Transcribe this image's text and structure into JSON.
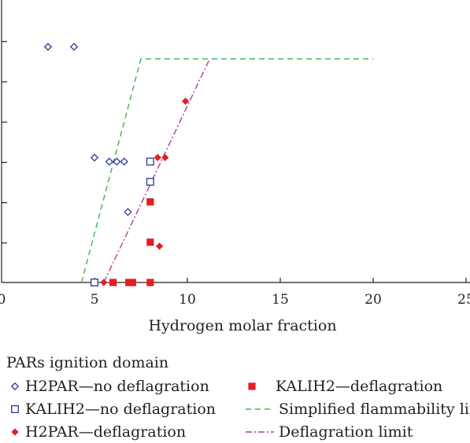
{
  "chart_data": {
    "type": "scatter",
    "xlabel": "Hydrogen molar fraction",
    "ylabel": "",
    "xlim": [
      0,
      25
    ],
    "ylim": [
      0,
      6
    ],
    "x_ticks": [
      0,
      5,
      10,
      15,
      20,
      25
    ],
    "y_ticks": [
      0,
      1,
      2,
      3,
      4,
      5,
      6
    ],
    "y_tick_labels_visible": false,
    "grid": false,
    "legend_title": "PARs ignition domain",
    "legend_position": "bottom",
    "series": [
      {
        "name": "H2PAR—no deflagration",
        "marker": "open-diamond",
        "color": "#2b3990",
        "points": [
          [
            2.5,
            5.85
          ],
          [
            3.9,
            5.85
          ],
          [
            5.0,
            3.1
          ],
          [
            5.8,
            3.0
          ],
          [
            6.2,
            3.0
          ],
          [
            6.6,
            3.0
          ],
          [
            6.8,
            1.75
          ]
        ]
      },
      {
        "name": "KALIH2—no deflagration",
        "marker": "open-square",
        "color": "#2b3990",
        "points": [
          [
            5.0,
            0.0
          ],
          [
            8.0,
            3.0
          ],
          [
            8.0,
            2.5
          ]
        ]
      },
      {
        "name": "H2PAR—deflagration",
        "marker": "filled-diamond",
        "color": "#e31e24",
        "points": [
          [
            9.9,
            4.5
          ],
          [
            8.4,
            3.1
          ],
          [
            8.8,
            3.1
          ],
          [
            8.5,
            0.9
          ],
          [
            5.5,
            0.0
          ],
          [
            6.9,
            0.0
          ],
          [
            8.0,
            0.0
          ]
        ]
      },
      {
        "name": "KALIH2—deflagration",
        "marker": "filled-square",
        "color": "#e31e24",
        "points": [
          [
            8.0,
            2.0
          ],
          [
            8.0,
            1.0
          ],
          [
            6.0,
            0.0
          ],
          [
            6.85,
            0.0
          ],
          [
            7.05,
            0.0
          ],
          [
            8.0,
            0.0
          ]
        ]
      },
      {
        "name": "Simplified flammability limit",
        "line": "dashed",
        "color": "#39b54a",
        "points": [
          [
            4.3,
            0.0
          ],
          [
            7.5,
            5.55
          ],
          [
            20.0,
            5.55
          ]
        ]
      },
      {
        "name": "Deflagration limit",
        "line": "dash-dot",
        "color": "#b43a9f",
        "points": [
          [
            5.5,
            0.0
          ],
          [
            11.2,
            5.55
          ]
        ]
      }
    ]
  }
}
